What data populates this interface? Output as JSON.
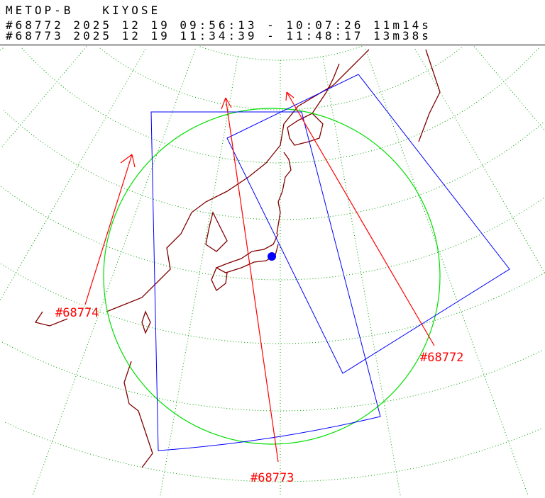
{
  "header": {
    "title": "METOP-B   KIYOSE",
    "passes": [
      {
        "id": "#68772",
        "line": "#68772 2025 12 19 09:56:13 - 10:07:26 11m14s"
      },
      {
        "id": "#68773",
        "line": "#68773 2025 12 19 11:34:39 - 11:48:17 13m38s"
      }
    ]
  },
  "map": {
    "track_labels": [
      "#68772",
      "#68773",
      "#68774"
    ],
    "station_marker": "kiyose-station-dot",
    "colors": {
      "grid": "#00a000",
      "coverage_circle": "#00e000",
      "swath": "#0000ff",
      "track": "#ff0000",
      "coast": "#800000",
      "station": "#0000ff"
    }
  }
}
